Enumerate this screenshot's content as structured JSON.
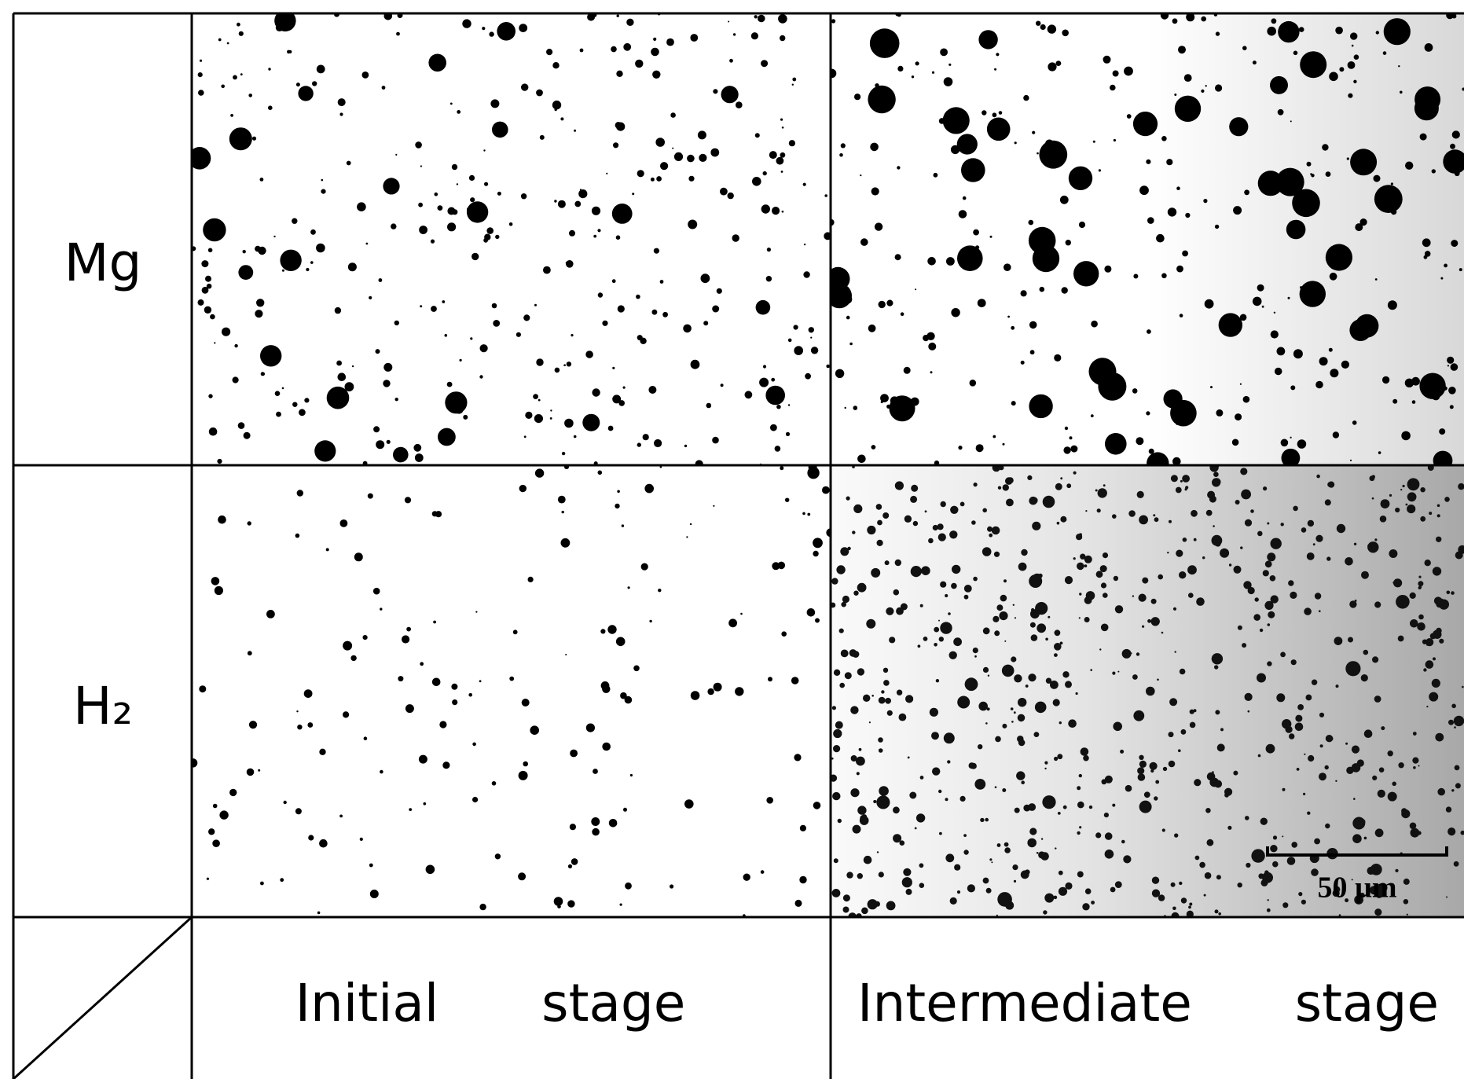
{
  "row_labels": [
    "Mg",
    "H₂"
  ],
  "column_labels": [
    "Initial stage",
    "Intermediate stage"
  ],
  "scale_bar": "50 µm"
}
